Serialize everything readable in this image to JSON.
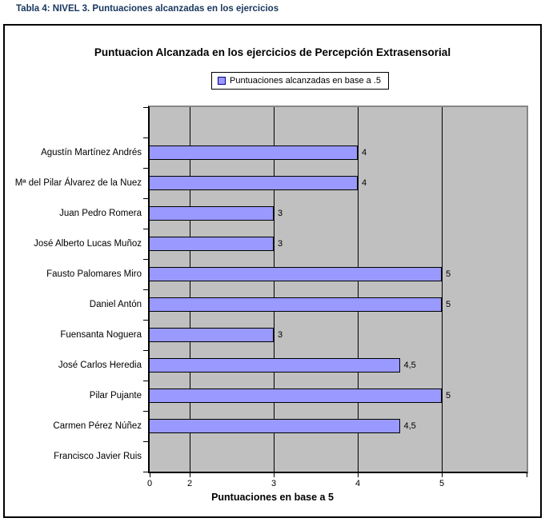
{
  "caption": "Tabla 4: NIVEL 3. Puntuaciones alcanzadas en los ejercicios",
  "chart_data": {
    "type": "bar",
    "orientation": "horizontal",
    "title": "Puntuacion Alcanzada en los ejercicios de Percepción Extrasensorial",
    "legend": [
      "Puntuaciones alcanzadas en base a .5"
    ],
    "legend_position": "top-center",
    "xlabel": "Puntuaciones en base a 5",
    "ylabel": "",
    "categories": [
      "Agustín Martínez Andrés",
      "Mª del Pilar Álvarez de la Nuez",
      "Juan Pedro Romera",
      "José Alberto Lucas Muñoz",
      "Fausto Palomares Miro",
      "Daniel Antón",
      "Fuensanta Noguera",
      "José Carlos Heredia",
      "Pilar Pujante",
      "Carmen Pérez Núñez",
      "Francisco Javier Ruis"
    ],
    "values": [
      4,
      4,
      3,
      3,
      5,
      5,
      3,
      4.5,
      5,
      4.5,
      null
    ],
    "value_labels": [
      "4",
      "4",
      "3",
      "3",
      "5",
      "5",
      "3",
      "4,5",
      "5",
      "4,5",
      ""
    ],
    "x_tick_labels": [
      "0",
      "2",
      "3",
      "4",
      "5"
    ],
    "gridlines_at": [
      2,
      3,
      4,
      5
    ],
    "grid": "vertical",
    "leading_blank_category_row": true,
    "xlim": [
      0,
      6
    ]
  },
  "colors": {
    "bar_fill": "#9999ff",
    "bar_border": "#000000",
    "plot_bg": "#c0c0c0",
    "plot_border_shadow": "#868686",
    "swatch_border": "#000080",
    "caption_color": "#17365d",
    "text": "#000000"
  }
}
